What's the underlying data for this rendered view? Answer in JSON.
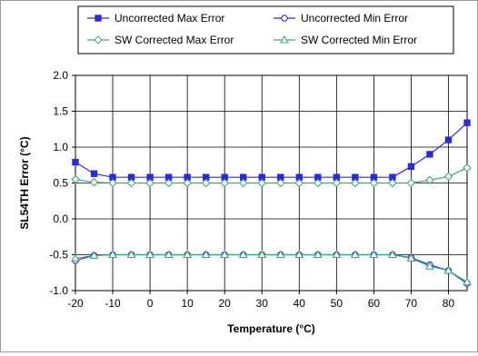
{
  "chart_data": {
    "type": "line",
    "title": "",
    "xlabel": "Temperature (°C)",
    "ylabel": "SL54TH Error (°C)",
    "xlim": [
      -20,
      85
    ],
    "ylim": [
      -1.0,
      2.0
    ],
    "x_ticks": [
      -20,
      -10,
      0,
      10,
      20,
      30,
      40,
      50,
      60,
      70,
      80
    ],
    "x_tick_labels": [
      "-20",
      "-10",
      "0",
      "10",
      "20",
      "30",
      "40",
      "50",
      "60",
      "70",
      "80"
    ],
    "y_ticks": [
      -1.0,
      -0.5,
      0.0,
      0.5,
      1.0,
      1.5,
      2.0
    ],
    "y_tick_labels": [
      "-1.0",
      "-0.5",
      "0.0",
      "0.5",
      "1.0",
      "1.5",
      "2.0"
    ],
    "grid": true,
    "legend_position": "top",
    "x": [
      -20,
      -15,
      -10,
      -5,
      0,
      5,
      10,
      15,
      20,
      25,
      30,
      35,
      40,
      45,
      50,
      55,
      60,
      65,
      70,
      75,
      80,
      85
    ],
    "series": [
      {
        "name": "Uncorrected Max Error",
        "color": "#2b2bd6",
        "marker": "square",
        "values": [
          0.79,
          0.63,
          0.58,
          0.58,
          0.58,
          0.58,
          0.58,
          0.58,
          0.58,
          0.58,
          0.58,
          0.58,
          0.58,
          0.58,
          0.58,
          0.58,
          0.58,
          0.58,
          0.73,
          0.9,
          1.1,
          1.34
        ]
      },
      {
        "name": "Uncorrected Min Error",
        "color": "#2b2bd6",
        "marker": "circle",
        "values": [
          -0.58,
          -0.51,
          -0.5,
          -0.5,
          -0.5,
          -0.5,
          -0.5,
          -0.5,
          -0.5,
          -0.5,
          -0.5,
          -0.5,
          -0.5,
          -0.5,
          -0.5,
          -0.5,
          -0.5,
          -0.5,
          -0.54,
          -0.64,
          -0.72,
          -0.9
        ]
      },
      {
        "name": "SW Corrected Max Error",
        "color": "#3fa77c",
        "marker": "diamond",
        "values": [
          0.55,
          0.51,
          0.5,
          0.5,
          0.5,
          0.5,
          0.5,
          0.5,
          0.5,
          0.5,
          0.5,
          0.5,
          0.5,
          0.5,
          0.5,
          0.5,
          0.5,
          0.5,
          0.5,
          0.54,
          0.59,
          0.71
        ]
      },
      {
        "name": "SW Corrected Min Error",
        "color": "#3fa77c",
        "marker": "triangle",
        "values": [
          -0.55,
          -0.51,
          -0.5,
          -0.5,
          -0.5,
          -0.5,
          -0.5,
          -0.5,
          -0.5,
          -0.5,
          -0.5,
          -0.5,
          -0.5,
          -0.5,
          -0.5,
          -0.5,
          -0.5,
          -0.5,
          -0.55,
          -0.66,
          -0.72,
          -0.88
        ]
      }
    ]
  }
}
